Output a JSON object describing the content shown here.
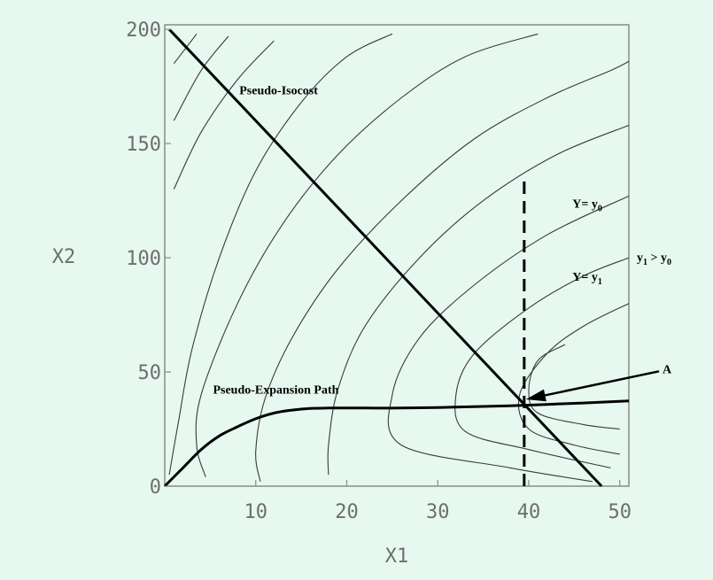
{
  "chart_data": {
    "type": "contour",
    "xlabel": "X1",
    "ylabel": "X2",
    "xlim": [
      0,
      51
    ],
    "ylim": [
      0,
      202
    ],
    "x_ticks": [
      10,
      20,
      30,
      40,
      50
    ],
    "y_ticks": [
      0,
      50,
      100,
      150,
      200
    ],
    "grid": false,
    "contours": [
      {
        "points": [
          [
            1,
            185
          ],
          [
            3.5,
            198
          ]
        ]
      },
      {
        "points": [
          [
            1,
            160
          ],
          [
            4,
            182
          ],
          [
            7,
            197
          ]
        ]
      },
      {
        "points": [
          [
            1,
            130
          ],
          [
            4,
            155
          ],
          [
            8,
            178
          ],
          [
            12,
            195
          ]
        ]
      },
      {
        "points": [
          [
            0.5,
            5
          ],
          [
            1.5,
            28
          ],
          [
            3,
            60
          ],
          [
            6,
            100
          ],
          [
            10,
            138
          ],
          [
            15,
            168
          ],
          [
            20,
            188
          ],
          [
            25,
            198
          ]
        ]
      },
      {
        "points": [
          [
            4.5,
            4
          ],
          [
            3.5,
            18
          ],
          [
            4,
            40
          ],
          [
            8,
            80
          ],
          [
            13,
            115
          ],
          [
            19,
            145
          ],
          [
            26,
            170
          ],
          [
            33,
            188
          ],
          [
            41,
            198
          ]
        ]
      },
      {
        "points": [
          [
            10.5,
            2
          ],
          [
            10,
            15
          ],
          [
            11,
            38
          ],
          [
            14,
            65
          ],
          [
            19,
            95
          ],
          [
            26,
            125
          ],
          [
            34,
            152
          ],
          [
            42,
            170
          ],
          [
            49,
            182
          ],
          [
            51,
            186
          ]
        ]
      },
      {
        "points": [
          [
            18,
            5
          ],
          [
            18,
            18
          ],
          [
            19,
            42
          ],
          [
            22,
            70
          ],
          [
            28,
            100
          ],
          [
            35,
            125
          ],
          [
            43,
            145
          ],
          [
            51,
            158
          ]
        ]
      },
      {
        "points": [
          [
            47,
            2
          ],
          [
            38,
            8
          ],
          [
            26,
            18
          ],
          [
            25,
            40
          ],
          [
            28,
            65
          ],
          [
            34,
            88
          ],
          [
            42,
            110
          ],
          [
            51,
            127
          ]
        ]
      },
      {
        "points": [
          [
            49,
            8
          ],
          [
            40,
            16
          ],
          [
            33,
            24
          ],
          [
            32,
            40
          ],
          [
            34,
            58
          ],
          [
            40,
            78
          ],
          [
            46,
            92
          ],
          [
            51,
            100
          ]
        ]
      },
      {
        "points": [
          [
            50,
            14
          ],
          [
            45,
            18
          ],
          [
            40,
            25
          ],
          [
            39,
            40
          ],
          [
            42,
            58
          ],
          [
            46,
            70
          ],
          [
            51,
            80
          ]
        ]
      },
      {
        "points": [
          [
            50,
            25
          ],
          [
            46,
            27
          ],
          [
            41,
            32
          ],
          [
            40,
            42
          ],
          [
            41,
            55
          ],
          [
            44,
            62
          ]
        ]
      }
    ],
    "series": [
      {
        "name": "Pseudo-Isocost",
        "type": "line",
        "x": [
          0.5,
          48
        ],
        "y": [
          200,
          0
        ]
      },
      {
        "name": "Pseudo-Expansion Path",
        "type": "line",
        "x": [
          0,
          2,
          4,
          6,
          8,
          10,
          12,
          14,
          16,
          18,
          22,
          26,
          30,
          34,
          38,
          42,
          46,
          51
        ],
        "y": [
          0,
          8,
          16,
          22,
          26,
          29.5,
          32,
          33.3,
          34,
          34.2,
          34.2,
          34.2,
          34.4,
          34.8,
          35.2,
          35.8,
          36.4,
          37.3
        ]
      },
      {
        "type": "vline",
        "x": 39.5,
        "y": [
          0,
          135
        ],
        "style": "dashed"
      }
    ],
    "annotations": [
      {
        "text": "Pseudo-Isocost",
        "x": 8.2,
        "y": 171.5
      },
      {
        "text": "Pseudo-Expansion Path",
        "x": 5.3,
        "y": 40.5
      },
      {
        "text": "Y= y",
        "sub": "0",
        "x": 44.8,
        "y": 122
      },
      {
        "text": "Y= y",
        "sub": "1",
        "x": 44.8,
        "y": 90
      },
      {
        "text": "A",
        "x": 54.7,
        "y": 49.5,
        "arrow_to": [
          39.7,
          38
        ]
      }
    ],
    "side_label": {
      "text": "y",
      "sub": "1",
      "rest": " > y",
      "sub2": "0"
    }
  }
}
